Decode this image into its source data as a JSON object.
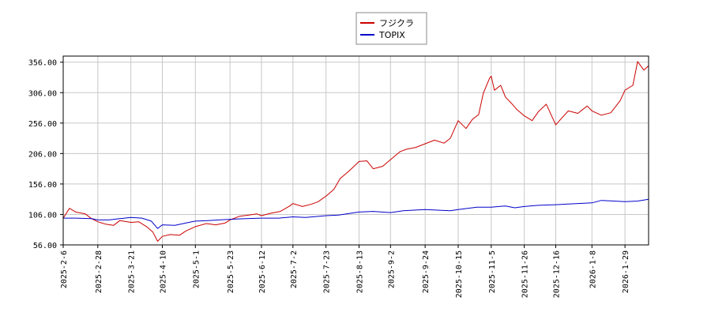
{
  "chart_data": {
    "type": "line",
    "title": "",
    "xlabel": "",
    "ylabel": "",
    "ylim": [
      56,
      366
    ],
    "y_ticks": [
      "356.00",
      "306.00",
      "256.00",
      "206.00",
      "156.00",
      "106.00",
      "56.00"
    ],
    "y_tick_values": [
      356,
      306,
      256,
      206,
      156,
      106,
      56
    ],
    "x_ticks": [
      "2025-2-6",
      "2025-2-28",
      "2025-3-21",
      "2025-4-10",
      "2025-5-1",
      "2025-5-23",
      "2025-6-12",
      "2025-7-2",
      "2025-7-23",
      "2025-8-13",
      "2025-9-2",
      "2025-9-24",
      "2025-10-15",
      "2025-11-5",
      "2025-11-26",
      "2025-12-16",
      "2026-1-8",
      "2026-1-29"
    ],
    "x_range": [
      "2025-2-6",
      "2026-2-13"
    ],
    "grid": true,
    "legend_position": "top-center",
    "series": [
      {
        "name": "フジクラ",
        "color": "#cc0000",
        "points": [
          [
            "2025-2-6",
            100
          ],
          [
            "2025-2-10",
            116
          ],
          [
            "2025-2-14",
            110
          ],
          [
            "2025-2-20",
            107
          ],
          [
            "2025-2-24",
            99
          ],
          [
            "2025-2-28",
            94
          ],
          [
            "2025-3-5",
            90
          ],
          [
            "2025-3-10",
            88
          ],
          [
            "2025-3-14",
            96
          ],
          [
            "2025-3-21",
            93
          ],
          [
            "2025-3-26",
            94
          ],
          [
            "2025-3-31",
            86
          ],
          [
            "2025-4-4",
            77
          ],
          [
            "2025-4-7",
            62
          ],
          [
            "2025-4-10",
            70
          ],
          [
            "2025-4-15",
            73
          ],
          [
            "2025-4-21",
            72
          ],
          [
            "2025-4-25",
            79
          ],
          [
            "2025-5-1",
            86
          ],
          [
            "2025-5-8",
            91
          ],
          [
            "2025-5-14",
            89
          ],
          [
            "2025-5-20",
            92
          ],
          [
            "2025-5-23",
            97
          ],
          [
            "2025-5-29",
            103
          ],
          [
            "2025-6-4",
            105
          ],
          [
            "2025-6-9",
            107
          ],
          [
            "2025-6-12",
            104
          ],
          [
            "2025-6-18",
            108
          ],
          [
            "2025-6-24",
            111
          ],
          [
            "2025-6-30",
            120
          ],
          [
            "2025-7-2",
            124
          ],
          [
            "2025-7-8",
            119
          ],
          [
            "2025-7-14",
            123
          ],
          [
            "2025-7-18",
            127
          ],
          [
            "2025-7-23",
            136
          ],
          [
            "2025-7-28",
            147
          ],
          [
            "2025-8-1",
            165
          ],
          [
            "2025-8-7",
            178
          ],
          [
            "2025-8-13",
            193
          ],
          [
            "2025-8-18",
            194
          ],
          [
            "2025-8-22",
            181
          ],
          [
            "2025-8-28",
            185
          ],
          [
            "2025-9-2",
            196
          ],
          [
            "2025-9-8",
            209
          ],
          [
            "2025-9-12",
            213
          ],
          [
            "2025-9-18",
            216
          ],
          [
            "2025-9-24",
            222
          ],
          [
            "2025-9-30",
            228
          ],
          [
            "2025-10-6",
            223
          ],
          [
            "2025-10-10",
            231
          ],
          [
            "2025-10-15",
            260
          ],
          [
            "2025-10-20",
            247
          ],
          [
            "2025-10-24",
            262
          ],
          [
            "2025-10-28",
            270
          ],
          [
            "2025-10-31",
            305
          ],
          [
            "2025-11-4",
            330
          ],
          [
            "2025-11-5",
            333
          ],
          [
            "2025-11-7",
            310
          ],
          [
            "2025-11-11",
            318
          ],
          [
            "2025-11-14",
            299
          ],
          [
            "2025-11-18",
            288
          ],
          [
            "2025-11-21",
            279
          ],
          [
            "2025-11-26",
            268
          ],
          [
            "2025-12-1",
            260
          ],
          [
            "2025-12-5",
            275
          ],
          [
            "2025-12-10",
            287
          ],
          [
            "2025-12-16",
            253
          ],
          [
            "2025-12-19",
            262
          ],
          [
            "2025-12-24",
            276
          ],
          [
            "2025-12-30",
            272
          ],
          [
            "2026-1-5",
            284
          ],
          [
            "2026-1-8",
            276
          ],
          [
            "2026-1-14",
            269
          ],
          [
            "2026-1-20",
            273
          ],
          [
            "2026-1-26",
            293
          ],
          [
            "2026-1-29",
            310
          ],
          [
            "2026-2-3",
            318
          ],
          [
            "2026-2-6",
            357
          ],
          [
            "2026-2-10",
            343
          ],
          [
            "2026-2-13",
            350
          ]
        ]
      },
      {
        "name": "TOPIX",
        "color": "#0000cc",
        "points": [
          [
            "2025-2-6",
            100
          ],
          [
            "2025-2-14",
            100
          ],
          [
            "2025-2-24",
            99
          ],
          [
            "2025-2-28",
            97
          ],
          [
            "2025-3-7",
            97
          ],
          [
            "2025-3-14",
            99
          ],
          [
            "2025-3-21",
            101
          ],
          [
            "2025-3-28",
            100
          ],
          [
            "2025-4-3",
            95
          ],
          [
            "2025-4-7",
            83
          ],
          [
            "2025-4-10",
            89
          ],
          [
            "2025-4-18",
            88
          ],
          [
            "2025-4-25",
            92
          ],
          [
            "2025-5-1",
            95
          ],
          [
            "2025-5-9",
            96
          ],
          [
            "2025-5-16",
            97
          ],
          [
            "2025-5-23",
            98
          ],
          [
            "2025-6-2",
            99
          ],
          [
            "2025-6-12",
            100
          ],
          [
            "2025-6-23",
            100
          ],
          [
            "2025-7-2",
            102
          ],
          [
            "2025-7-10",
            101
          ],
          [
            "2025-7-23",
            104
          ],
          [
            "2025-7-31",
            105
          ],
          [
            "2025-8-13",
            110
          ],
          [
            "2025-8-22",
            111
          ],
          [
            "2025-9-2",
            109
          ],
          [
            "2025-9-10",
            112
          ],
          [
            "2025-9-24",
            114
          ],
          [
            "2025-10-3",
            113
          ],
          [
            "2025-10-10",
            112
          ],
          [
            "2025-10-15",
            114
          ],
          [
            "2025-10-27",
            118
          ],
          [
            "2025-11-5",
            118
          ],
          [
            "2025-11-14",
            120
          ],
          [
            "2025-11-20",
            117
          ],
          [
            "2025-11-26",
            119
          ],
          [
            "2025-12-5",
            121
          ],
          [
            "2025-12-16",
            122
          ],
          [
            "2025-12-24",
            123
          ],
          [
            "2026-1-8",
            125
          ],
          [
            "2026-1-14",
            129
          ],
          [
            "2026-1-22",
            128
          ],
          [
            "2026-1-29",
            127
          ],
          [
            "2026-2-6",
            128
          ],
          [
            "2026-2-13",
            131
          ]
        ]
      }
    ]
  }
}
